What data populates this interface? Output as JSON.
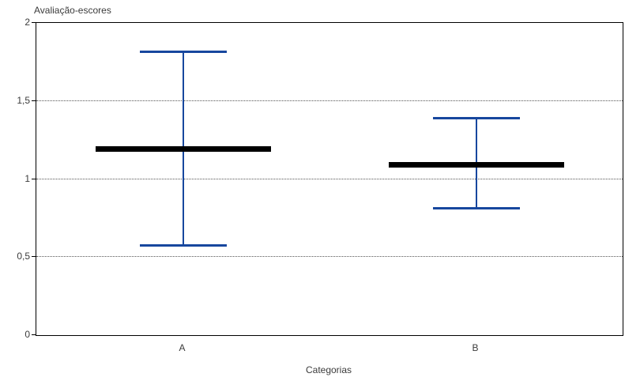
{
  "chart_data": {
    "type": "errorbar",
    "title": "Avaliação-escores",
    "axis_title": "Avaliação-escores",
    "xlabel": "Categorias",
    "ylabel": "Avaliação-escores",
    "categories": [
      "A",
      "B"
    ],
    "points": [
      {
        "category": "A",
        "mean": 1.19,
        "upper": 1.82,
        "lower": 0.57
      },
      {
        "category": "B",
        "mean": 1.09,
        "upper": 1.39,
        "lower": 0.81
      }
    ],
    "ylim": [
      0,
      2
    ],
    "yticks": [
      {
        "value": 0,
        "label": "0"
      },
      {
        "value": 0.5,
        "label": "0,5"
      },
      {
        "value": 1,
        "label": "1"
      },
      {
        "value": 1.5,
        "label": "1,5"
      },
      {
        "value": 2,
        "label": "2"
      }
    ],
    "gridline_values": [
      0.5,
      1,
      1.5
    ],
    "grid": true,
    "legend": "none",
    "colors": {
      "error_bar": "#17479e",
      "mean_line": "#000000",
      "gridline": "#555555",
      "border": "#000000",
      "background": "#ffffff",
      "text": "#3b3b3b"
    }
  }
}
